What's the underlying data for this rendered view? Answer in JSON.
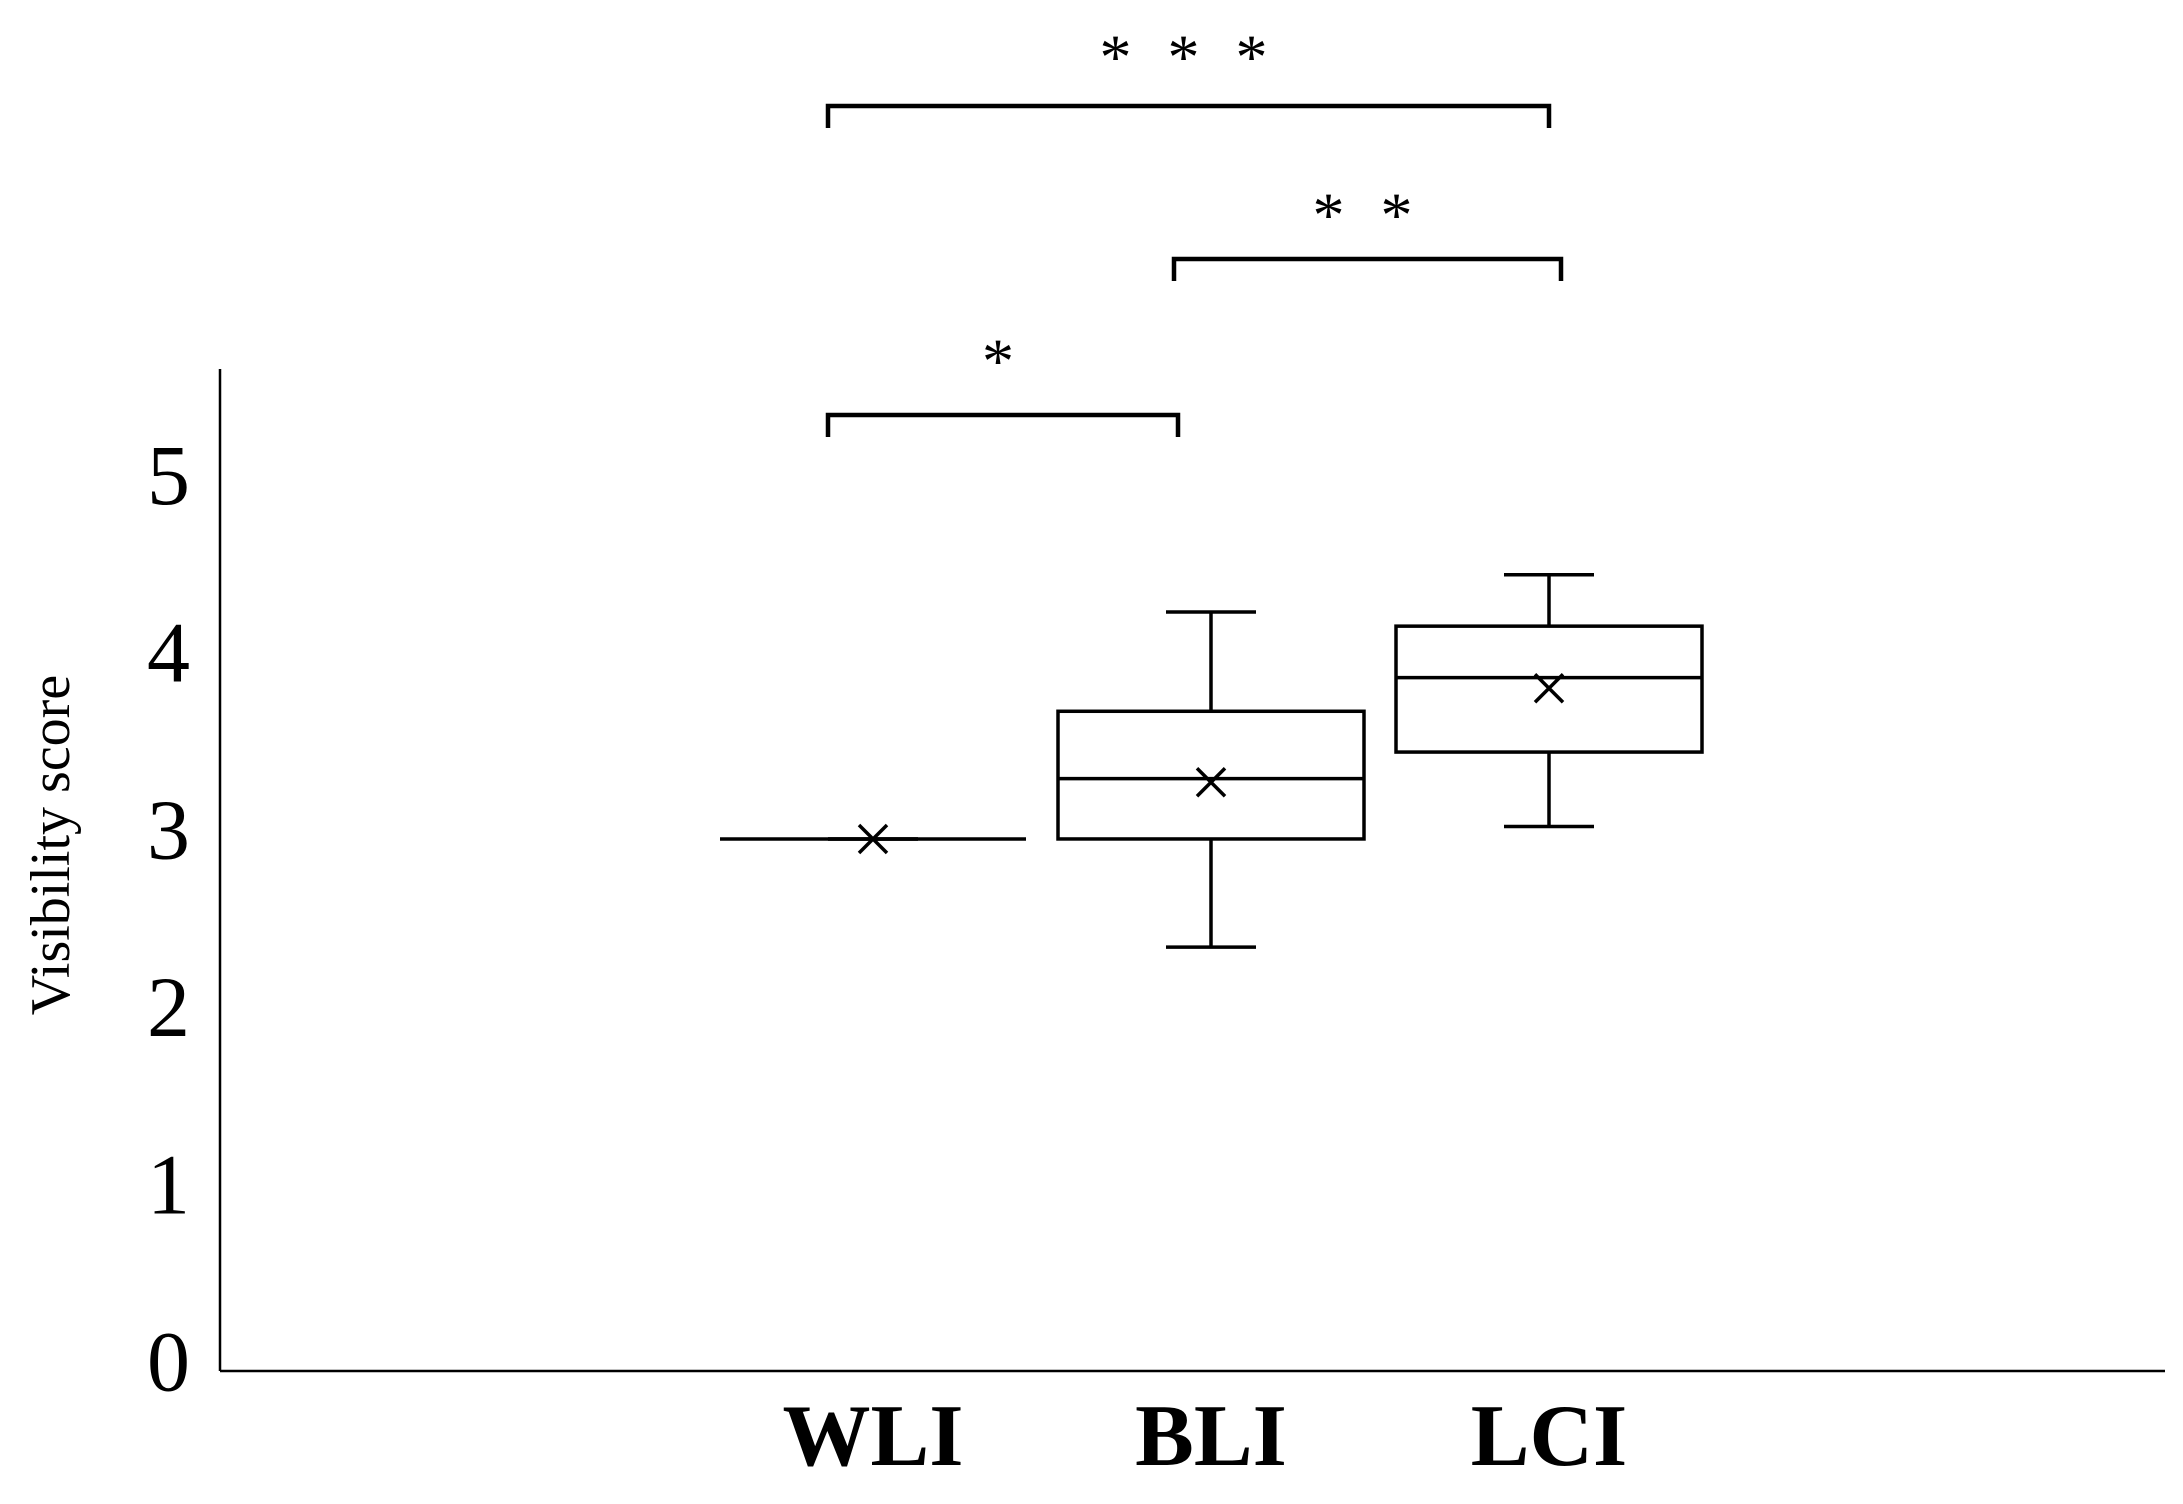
{
  "chart_data": {
    "type": "box",
    "y_label": "Visibility score",
    "categories": [
      "WLI",
      "BLI",
      "LCI"
    ],
    "boxes": [
      {
        "min": 3,
        "q1": 3,
        "median": 3,
        "q3": 3,
        "max": 3,
        "mean": 3
      },
      {
        "min": 2.39,
        "q1": 3,
        "median": 3.34,
        "q3": 3.72,
        "max": 4.28,
        "mean": 3.32
      },
      {
        "min": 3.07,
        "q1": 3.49,
        "median": 3.91,
        "q3": 4.2,
        "max": 4.49,
        "mean": 3.85
      }
    ],
    "color": "#000000",
    "ylim": [
      0,
      5.65
    ],
    "yticks": [
      0,
      1,
      2,
      3,
      4,
      5
    ],
    "grid": false,
    "annotations": [
      "*",
      "* *",
      "* * *"
    ]
  }
}
